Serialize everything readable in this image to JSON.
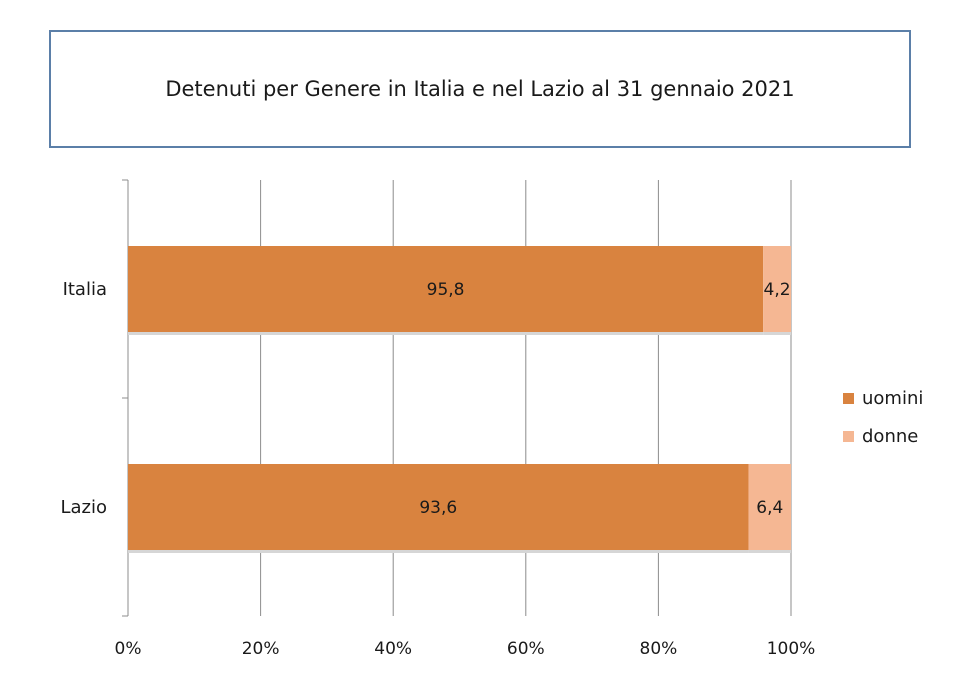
{
  "chart_data": {
    "type": "bar",
    "orientation": "horizontal",
    "stacked": "percent",
    "title": "Detenuti per Genere in Italia e nel Lazio al 31 gennaio 2021",
    "categories": [
      "Italia",
      "Lazio"
    ],
    "series": [
      {
        "name": "uomini",
        "values": [
          95.8,
          93.6
        ],
        "labels": [
          "95,8",
          "93,6"
        ],
        "color": "#d9833f"
      },
      {
        "name": "donne",
        "values": [
          4.2,
          6.4
        ],
        "labels": [
          "4,2",
          "6,4"
        ],
        "color": "#f5b793"
      }
    ],
    "xlim": [
      0,
      100
    ],
    "xticks": [
      0,
      20,
      40,
      60,
      80,
      100
    ],
    "xtick_labels": [
      "0%",
      "20%",
      "40%",
      "60%",
      "80%",
      "100%"
    ],
    "grid": "vertical",
    "legend": "right"
  }
}
